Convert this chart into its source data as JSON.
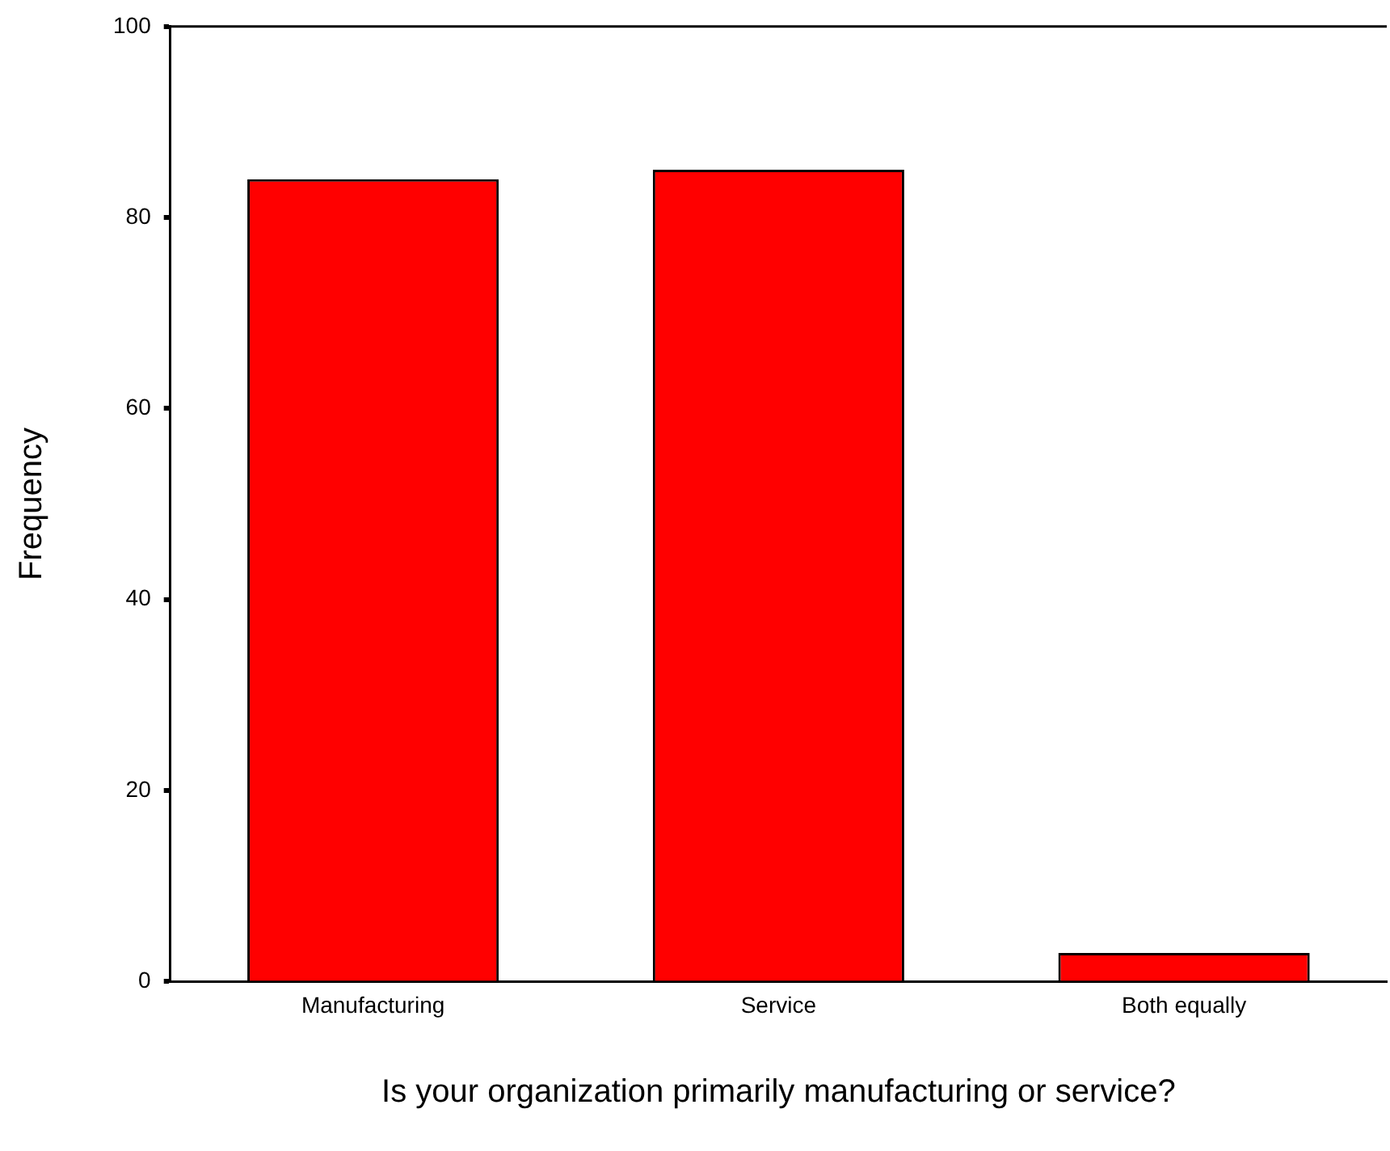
{
  "chart_data": {
    "type": "bar",
    "xlabel": "Is your organization primarily manufacturing or service?",
    "ylabel": "Frequency",
    "categories": [
      "Manufacturing",
      "Service",
      "Both equally"
    ],
    "values": [
      84,
      85,
      3
    ],
    "color": "#ff0000",
    "ylim": [
      0,
      100
    ],
    "yticks": [
      0,
      20,
      40,
      60,
      80,
      100
    ],
    "grid": false,
    "legend": false
  }
}
